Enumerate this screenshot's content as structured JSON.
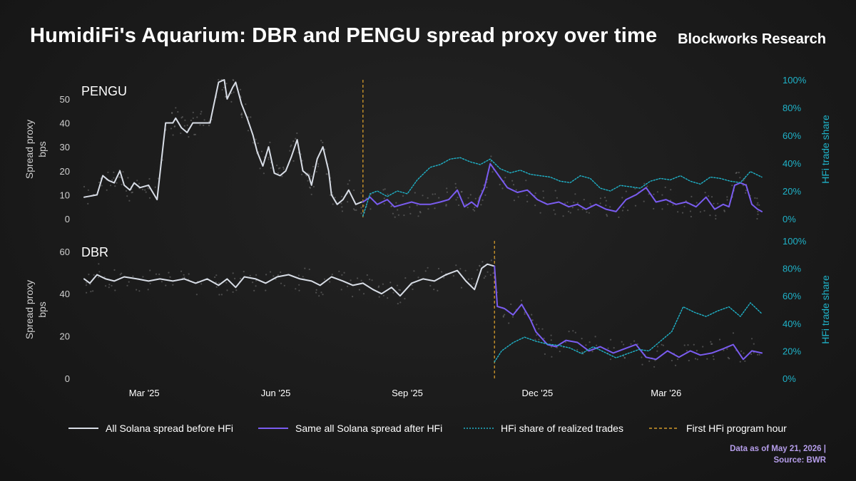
{
  "title": "HumidiFi's Aquarium: DBR and PENGU spread proxy over time",
  "brand": "Blockworks Research",
  "footnote": {
    "line1": "Data as of May 21, 2026 |",
    "line2": "Source: BWR"
  },
  "colors": {
    "before": "#d8dde6",
    "after": "#7a5cf0",
    "share": "#1fb3c9",
    "first_hour": "#d49a2a",
    "scatter": "#777777",
    "left_axis_text": "#d0d0d0",
    "right_axis_text": "#1fb3c9"
  },
  "legend": [
    {
      "label": "All Solana spread before HFi",
      "color": "#d8dde6",
      "style": "solid"
    },
    {
      "label": "Same all Solana spread after HFi",
      "color": "#7a5cf0",
      "style": "solid"
    },
    {
      "label": "HFi share of realized trades",
      "color": "#1fb3c9",
      "style": "dotted"
    },
    {
      "label": "First HFi program hour",
      "color": "#d49a2a",
      "style": "dashed"
    }
  ],
  "chart_data": [
    {
      "type": "line",
      "panel_label": "PENGU",
      "ylabel": "Spread proxy\nbps",
      "y2label": "HFi trade share",
      "ylim": [
        0,
        58
      ],
      "yticks": [
        0,
        10,
        20,
        30,
        40,
        50
      ],
      "y2lim": [
        0,
        100
      ],
      "y2ticks": [
        "0%",
        "20%",
        "40%",
        "60%",
        "80%",
        "100%"
      ],
      "xlim": [
        "2025-02-01",
        "2026-05-21"
      ],
      "xticks": [
        "Mar '25",
        "Jun '25",
        "Sep '25",
        "Dec '25",
        "Mar '26"
      ],
      "first_hfi_hour": "2025-08-15",
      "series": [
        {
          "key": "before",
          "x": [
            "2025-02-01",
            "2025-02-10",
            "2025-02-14",
            "2025-02-18",
            "2025-02-22",
            "2025-02-26",
            "2025-03-01",
            "2025-03-05",
            "2025-03-08",
            "2025-03-12",
            "2025-03-18",
            "2025-03-24",
            "2025-03-30",
            "2025-04-04",
            "2025-04-06",
            "2025-04-10",
            "2025-04-14",
            "2025-04-18",
            "2025-04-20",
            "2025-04-24",
            "2025-04-30",
            "2025-05-06",
            "2025-05-10",
            "2025-05-12",
            "2025-05-16",
            "2025-05-18",
            "2025-05-22",
            "2025-05-26",
            "2025-05-30",
            "2025-06-02",
            "2025-06-06",
            "2025-06-10",
            "2025-06-14",
            "2025-06-18",
            "2025-06-22",
            "2025-06-26",
            "2025-06-30",
            "2025-07-04",
            "2025-07-08",
            "2025-07-10",
            "2025-07-14",
            "2025-07-18",
            "2025-07-22",
            "2025-07-24",
            "2025-07-28",
            "2025-08-01",
            "2025-08-05",
            "2025-08-10",
            "2025-08-14"
          ],
          "y": [
            9,
            10,
            18,
            16,
            15,
            20,
            14,
            12,
            15,
            13,
            14,
            8,
            40,
            40,
            42,
            38,
            36,
            40,
            40,
            40,
            40,
            57,
            58,
            50,
            55,
            57,
            48,
            42,
            35,
            28,
            22,
            30,
            19,
            18,
            20,
            26,
            33,
            20,
            18,
            14,
            25,
            30,
            20,
            10,
            6,
            8,
            12,
            6,
            7
          ]
        },
        {
          "key": "after",
          "x": [
            "2025-08-15",
            "2025-08-20",
            "2025-08-25",
            "2025-09-01",
            "2025-09-06",
            "2025-09-12",
            "2025-09-18",
            "2025-09-24",
            "2025-10-01",
            "2025-10-08",
            "2025-10-14",
            "2025-10-20",
            "2025-10-25",
            "2025-10-30",
            "2025-11-03",
            "2025-11-05",
            "2025-11-08",
            "2025-11-12",
            "2025-11-18",
            "2025-11-24",
            "2025-12-01",
            "2025-12-08",
            "2025-12-15",
            "2025-12-22",
            "2025-12-30",
            "2026-01-06",
            "2026-01-12",
            "2026-01-18",
            "2026-01-25",
            "2026-02-01",
            "2026-02-08",
            "2026-02-15",
            "2026-02-22",
            "2026-03-01",
            "2026-03-08",
            "2026-03-15",
            "2026-03-22",
            "2026-03-29",
            "2026-04-05",
            "2026-04-12",
            "2026-04-18",
            "2026-04-24",
            "2026-04-28",
            "2026-05-02",
            "2026-05-06",
            "2026-05-10",
            "2026-05-14",
            "2026-05-18",
            "2026-05-21"
          ],
          "y": [
            7,
            9,
            6,
            8,
            5,
            6,
            7,
            6,
            6,
            7,
            8,
            12,
            5,
            7,
            5,
            9,
            13,
            23,
            18,
            13,
            11,
            12,
            8,
            6,
            7,
            5,
            6,
            4,
            6,
            4,
            3,
            8,
            10,
            13,
            7,
            8,
            6,
            7,
            5,
            9,
            4,
            6,
            5,
            14,
            15,
            14,
            6,
            4,
            3
          ]
        },
        {
          "key": "share",
          "x": [
            "2025-08-15",
            "2025-08-20",
            "2025-08-25",
            "2025-09-01",
            "2025-09-08",
            "2025-09-15",
            "2025-09-22",
            "2025-10-01",
            "2025-10-08",
            "2025-10-15",
            "2025-10-22",
            "2025-10-29",
            "2025-11-05",
            "2025-11-12",
            "2025-11-19",
            "2025-11-26",
            "2025-12-03",
            "2025-12-10",
            "2025-12-17",
            "2025-12-24",
            "2025-12-31",
            "2026-01-07",
            "2026-01-14",
            "2026-01-21",
            "2026-01-28",
            "2026-02-04",
            "2026-02-11",
            "2026-02-18",
            "2026-02-25",
            "2026-03-04",
            "2026-03-11",
            "2026-03-18",
            "2026-03-25",
            "2026-04-01",
            "2026-04-08",
            "2026-04-15",
            "2026-04-22",
            "2026-04-29",
            "2026-05-06",
            "2026-05-13",
            "2026-05-21"
          ],
          "y": [
            2,
            18,
            20,
            16,
            20,
            18,
            28,
            37,
            39,
            43,
            44,
            41,
            39,
            43,
            36,
            33,
            35,
            32,
            31,
            30,
            27,
            26,
            31,
            29,
            22,
            20,
            24,
            23,
            22,
            27,
            29,
            28,
            31,
            27,
            25,
            30,
            29,
            27,
            26,
            34,
            30
          ]
        }
      ]
    },
    {
      "type": "line",
      "panel_label": "DBR",
      "ylabel": "Spread proxy\nbps",
      "y2label": "HFi trade share",
      "ylim": [
        0,
        65
      ],
      "yticks": [
        0,
        20,
        40,
        60
      ],
      "y2lim": [
        0,
        100
      ],
      "y2ticks": [
        "0%",
        "20%",
        "40%",
        "60%",
        "80%",
        "100%"
      ],
      "xlim": [
        "2025-02-01",
        "2026-05-21"
      ],
      "xticks": [
        "Mar '25",
        "Jun '25",
        "Sep '25",
        "Dec '25",
        "Mar '26"
      ],
      "first_hfi_hour": "2025-11-15",
      "series": [
        {
          "key": "before",
          "x": [
            "2025-02-01",
            "2025-02-05",
            "2025-02-10",
            "2025-02-16",
            "2025-02-22",
            "2025-03-01",
            "2025-03-10",
            "2025-03-18",
            "2025-03-26",
            "2025-04-04",
            "2025-04-12",
            "2025-04-20",
            "2025-04-28",
            "2025-05-06",
            "2025-05-12",
            "2025-05-18",
            "2025-05-24",
            "2025-06-01",
            "2025-06-08",
            "2025-06-16",
            "2025-06-24",
            "2025-07-02",
            "2025-07-10",
            "2025-07-16",
            "2025-07-24",
            "2025-08-01",
            "2025-08-08",
            "2025-08-15",
            "2025-08-22",
            "2025-08-28",
            "2025-09-04",
            "2025-09-10",
            "2025-09-18",
            "2025-09-26",
            "2025-10-04",
            "2025-10-12",
            "2025-10-20",
            "2025-10-26",
            "2025-11-01",
            "2025-11-06",
            "2025-11-10",
            "2025-11-15"
          ],
          "y": [
            47,
            45,
            49,
            47,
            46,
            48,
            47,
            46,
            47,
            46,
            47,
            45,
            47,
            44,
            47,
            43,
            48,
            47,
            45,
            48,
            49,
            47,
            46,
            44,
            48,
            46,
            44,
            45,
            42,
            40,
            43,
            39,
            45,
            47,
            46,
            49,
            51,
            46,
            42,
            52,
            54,
            53
          ]
        },
        {
          "key": "after",
          "x": [
            "2025-11-15",
            "2025-11-17",
            "2025-11-22",
            "2025-11-28",
            "2025-12-04",
            "2025-12-10",
            "2025-12-14",
            "2025-12-18",
            "2025-12-22",
            "2025-12-28",
            "2026-01-04",
            "2026-01-12",
            "2026-01-20",
            "2026-01-28",
            "2026-02-06",
            "2026-02-14",
            "2026-02-22",
            "2026-03-01",
            "2026-03-08",
            "2026-03-16",
            "2026-03-24",
            "2026-04-01",
            "2026-04-08",
            "2026-04-16",
            "2026-04-24",
            "2026-05-01",
            "2026-05-08",
            "2026-05-14",
            "2026-05-21"
          ],
          "y": [
            53,
            34,
            33,
            30,
            35,
            28,
            22,
            19,
            16,
            15,
            18,
            17,
            13,
            15,
            12,
            14,
            16,
            10,
            9,
            13,
            10,
            13,
            11,
            12,
            14,
            16,
            9,
            13,
            12
          ]
        },
        {
          "key": "share",
          "x": [
            "2025-11-15",
            "2025-11-20",
            "2025-11-28",
            "2025-12-06",
            "2025-12-14",
            "2025-12-22",
            "2025-12-30",
            "2026-01-07",
            "2026-01-15",
            "2026-01-23",
            "2026-01-31",
            "2026-02-08",
            "2026-02-16",
            "2026-02-24",
            "2026-03-03",
            "2026-03-11",
            "2026-03-19",
            "2026-03-27",
            "2026-04-04",
            "2026-04-12",
            "2026-04-20",
            "2026-04-28",
            "2026-05-06",
            "2026-05-13",
            "2026-05-21"
          ],
          "y": [
            12,
            20,
            26,
            30,
            27,
            25,
            24,
            22,
            18,
            23,
            19,
            15,
            18,
            21,
            20,
            27,
            34,
            52,
            48,
            45,
            49,
            52,
            45,
            55,
            47
          ]
        }
      ]
    }
  ]
}
